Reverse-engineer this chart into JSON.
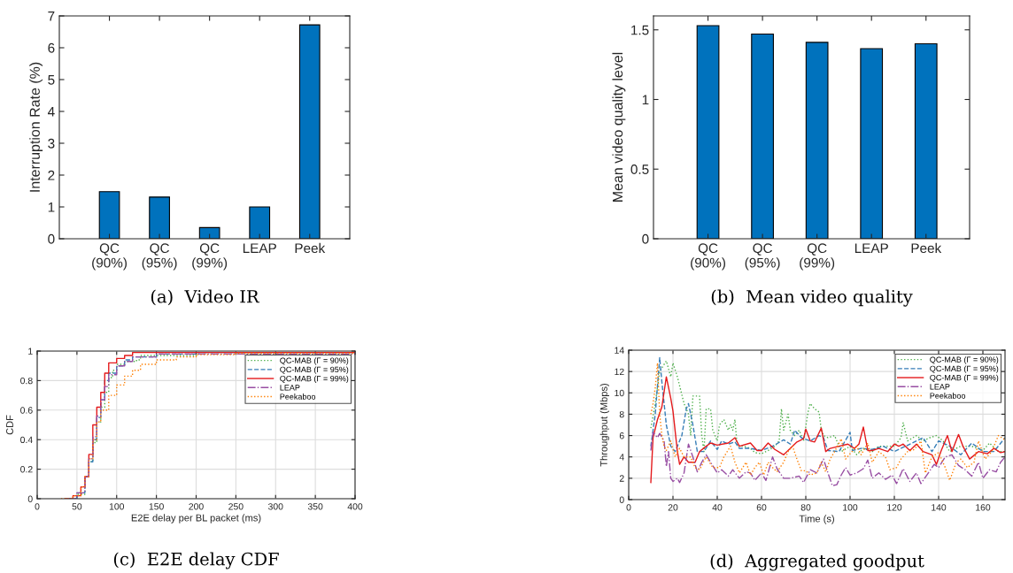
{
  "chart_data": [
    {
      "type": "bar",
      "title": "(a)  Video IR",
      "ylabel": "Interruption Rate (%)",
      "categories": [
        "QC\n(90%)",
        "QC\n(95%)",
        "QC\n(99%)",
        "LEAP",
        "Peek"
      ],
      "values": [
        1.48,
        1.31,
        0.35,
        1.0,
        6.72
      ],
      "color": "#0072bd",
      "ylim": [
        0,
        7
      ],
      "yticks": [
        0,
        1,
        2,
        3,
        4,
        5,
        6,
        7
      ]
    },
    {
      "type": "bar",
      "title": "(b)  Mean video quality",
      "ylabel": "Mean video quality level",
      "categories": [
        "QC\n(90%)",
        "QC\n(95%)",
        "QC\n(99%)",
        "LEAP",
        "Peek"
      ],
      "values": [
        1.53,
        1.47,
        1.41,
        1.365,
        1.4
      ],
      "color": "#0072bd",
      "ylim": [
        0,
        1.6
      ],
      "yticks": [
        0,
        0.5,
        1,
        1.5
      ]
    },
    {
      "type": "step",
      "title": "(c)  E2E delay CDF",
      "xlabel": "E2E delay per BL packet (ms)",
      "ylabel": "CDF",
      "xlim": [
        0,
        400
      ],
      "xticks": [
        0,
        50,
        100,
        150,
        200,
        250,
        300,
        350,
        400
      ],
      "ylim": [
        0,
        1
      ],
      "yticks": [
        0,
        0.2,
        0.4,
        0.6,
        0.8,
        1
      ],
      "grid": true,
      "legend": "top right",
      "series": [
        {
          "name": "QC-MAB (Γ = 90%)",
          "color": "#4daf4a",
          "line_style": "dotted",
          "x": [
            40,
            50,
            60,
            65,
            70,
            75,
            80,
            85,
            90,
            95,
            100,
            110,
            125,
            130,
            200,
            400
          ],
          "values": [
            0,
            0.03,
            0.15,
            0.25,
            0.38,
            0.52,
            0.62,
            0.72,
            0.82,
            0.87,
            0.91,
            0.93,
            0.94,
            0.97,
            0.98,
            0.99
          ]
        },
        {
          "name": "QC-MAB (Γ = 95%)",
          "color": "#377eb8",
          "line_style": "dashed",
          "x": [
            40,
            50,
            60,
            65,
            70,
            75,
            80,
            85,
            90,
            100,
            110,
            120,
            150,
            200,
            400
          ],
          "values": [
            0,
            0.04,
            0.15,
            0.25,
            0.4,
            0.55,
            0.67,
            0.8,
            0.85,
            0.9,
            0.94,
            0.96,
            0.98,
            0.99,
            1.0
          ]
        },
        {
          "name": "QC-MAB (Γ = 99%)",
          "color": "#e41a1c",
          "line_style": "solid",
          "x": [
            35,
            45,
            55,
            60,
            65,
            70,
            75,
            80,
            85,
            90,
            100,
            110,
            120,
            400
          ],
          "values": [
            0,
            0.02,
            0.08,
            0.15,
            0.3,
            0.5,
            0.62,
            0.72,
            0.85,
            0.92,
            0.95,
            0.97,
            0.99,
            1.0
          ]
        },
        {
          "name": "LEAP",
          "color": "#984ea3",
          "line_style": "dashdot",
          "x": [
            40,
            50,
            60,
            65,
            70,
            75,
            80,
            85,
            90,
            100,
            110,
            120,
            150,
            400
          ],
          "values": [
            0,
            0.04,
            0.15,
            0.27,
            0.42,
            0.56,
            0.67,
            0.76,
            0.84,
            0.9,
            0.93,
            0.96,
            0.98,
            0.99
          ]
        },
        {
          "name": "Peekaboo",
          "color": "#ff7f00",
          "line_style": "dotted",
          "x": [
            30,
            45,
            55,
            60,
            65,
            70,
            75,
            80,
            90,
            100,
            110,
            120,
            130,
            150,
            175,
            200,
            250,
            400
          ],
          "values": [
            0,
            0.02,
            0.08,
            0.15,
            0.27,
            0.4,
            0.52,
            0.6,
            0.7,
            0.77,
            0.83,
            0.87,
            0.91,
            0.94,
            0.96,
            0.975,
            0.985,
            0.99
          ]
        }
      ]
    },
    {
      "type": "line",
      "title": "(d)  Aggregated goodput",
      "xlabel": "Time (s)",
      "ylabel": "Throughput (Mbps)",
      "xlim": [
        0,
        170
      ],
      "xticks": [
        0,
        20,
        40,
        60,
        80,
        100,
        120,
        140,
        160
      ],
      "ylim": [
        0,
        14
      ],
      "yticks": [
        0,
        2,
        4,
        6,
        8,
        10,
        12,
        14
      ],
      "grid": true,
      "legend": "top right",
      "series": [
        {
          "name": "QC-MAB (Γ = 90%)",
          "color": "#4daf4a",
          "line_style": "dotted",
          "x": [
            10,
            12,
            14,
            17,
            19,
            20,
            22,
            25,
            27,
            28,
            29,
            32,
            33,
            34,
            35,
            37,
            38,
            40,
            41,
            43,
            45,
            46,
            47,
            48,
            49,
            52,
            55,
            57,
            60,
            63,
            66,
            68,
            69,
            70,
            72,
            73,
            75,
            77,
            79,
            81,
            82,
            84,
            86,
            87,
            88,
            90,
            93,
            94,
            96,
            100,
            103,
            106,
            110,
            113,
            116,
            120,
            123,
            124,
            126,
            130,
            133,
            136,
            139,
            142,
            145,
            150,
            155,
            160,
            163,
            167,
            170
          ],
          "values": [
            6.7,
            9,
            12,
            13,
            11.5,
            12.8,
            11.5,
            9,
            8,
            6,
            9.7,
            9.7,
            6,
            4.5,
            8.5,
            8.5,
            6.5,
            5.5,
            7,
            7.5,
            6.5,
            7,
            6.5,
            7.5,
            5,
            5,
            4.8,
            4.4,
            4.3,
            4.6,
            5,
            5.5,
            8.5,
            6.5,
            8,
            6.5,
            6,
            6.5,
            5.5,
            8.2,
            9,
            8.5,
            8.2,
            6.5,
            6,
            5.8,
            6,
            5.5,
            4.5,
            5,
            4.2,
            4.8,
            4.5,
            5,
            5,
            5,
            5.8,
            7.2,
            5.5,
            6,
            5.5,
            5.8,
            6,
            5.5,
            4.5,
            5,
            5,
            4.6,
            5.3,
            4.5,
            4.5
          ]
        },
        {
          "name": "QC-MAB (Γ = 95%)",
          "color": "#377eb8",
          "line_style": "dashed",
          "x": [
            10,
            12,
            14,
            15,
            17,
            19,
            21,
            24,
            26,
            27,
            29,
            31,
            34,
            37,
            40,
            42,
            45,
            48,
            50,
            55,
            60,
            65,
            70,
            73,
            75,
            78,
            82,
            86,
            88,
            90,
            95,
            100,
            101,
            105,
            110,
            115,
            120,
            125,
            130,
            133,
            137,
            140,
            145,
            150,
            155,
            160,
            165,
            170
          ],
          "values": [
            5,
            8,
            13.3,
            11,
            7,
            5,
            4.5,
            6,
            8.5,
            9,
            7,
            4.5,
            4.5,
            5.5,
            4.7,
            5.5,
            5.2,
            5.4,
            4.8,
            4.8,
            4.6,
            5,
            5.6,
            5.2,
            6.5,
            5.8,
            5.5,
            6,
            5.8,
            4.6,
            4.5,
            6.3,
            4.6,
            4.8,
            4.7,
            5,
            4.5,
            5,
            5.5,
            5.8,
            4.5,
            5.5,
            5,
            4.2,
            5.3,
            4.5,
            4.5,
            5.8
          ]
        },
        {
          "name": "QC-MAB (Γ = 99%)",
          "color": "#e41a1c",
          "line_style": "solid",
          "x": [
            10,
            11,
            13,
            15,
            17,
            19,
            20,
            22,
            23,
            25,
            27,
            30,
            32,
            35,
            37,
            40,
            45,
            48,
            50,
            55,
            58,
            60,
            63,
            66,
            70,
            73,
            76,
            79,
            80,
            82,
            84,
            87,
            89,
            91,
            95,
            99,
            102,
            104,
            106,
            108,
            110,
            113,
            117,
            120,
            122,
            124,
            127,
            130,
            133,
            137,
            139,
            141,
            144,
            146,
            149,
            151,
            154,
            158,
            162,
            165,
            168,
            170
          ],
          "values": [
            1.6,
            5.8,
            7.5,
            8.7,
            11.5,
            9.5,
            8.3,
            4.5,
            3.3,
            4,
            3.5,
            3.5,
            4.5,
            5,
            5.3,
            5.1,
            5.3,
            5.8,
            5,
            5.3,
            4.6,
            4.6,
            5.3,
            4.7,
            4.2,
            4.8,
            5.4,
            5.7,
            6.6,
            5.5,
            5.4,
            6.7,
            4.5,
            4.8,
            5,
            5.2,
            4.8,
            5.2,
            6.8,
            4.6,
            4.6,
            4.8,
            4.5,
            5.2,
            5,
            5.2,
            4.6,
            5.2,
            4.5,
            4.2,
            3.3,
            4.5,
            6,
            4.5,
            6.1,
            5,
            3.8,
            4.5,
            4.3,
            4.8,
            4.4,
            4.5
          ]
        },
        {
          "name": "LEAP",
          "color": "#984ea3",
          "line_style": "dashdot",
          "x": [
            10,
            11,
            13,
            14,
            16,
            17,
            18,
            19,
            20,
            22,
            23,
            25,
            27,
            29,
            31,
            33,
            35,
            37,
            40,
            42,
            45,
            47,
            50,
            53,
            55,
            57,
            60,
            62,
            65,
            67,
            70,
            73,
            77,
            79,
            82,
            85,
            88,
            90,
            92,
            94,
            96,
            98,
            100,
            103,
            106,
            108,
            110,
            113,
            116,
            119,
            121,
            124,
            127,
            130,
            132,
            135,
            138,
            140,
            143,
            146,
            149,
            152,
            155,
            158,
            160,
            163,
            166,
            168,
            170
          ],
          "values": [
            4.6,
            6.3,
            5.8,
            6.2,
            5.5,
            3.1,
            4.5,
            2,
            1.7,
            2,
            1.6,
            2.5,
            5.2,
            4,
            2.6,
            3.5,
            4.2,
            3.5,
            2.5,
            2.8,
            2.2,
            2.8,
            2,
            2.6,
            2.5,
            1.8,
            2.5,
            1.8,
            4,
            2.9,
            2,
            2,
            2.2,
            1.6,
            2.8,
            2.5,
            3.8,
            2.5,
            1.3,
            1.4,
            2.3,
            3,
            2.3,
            2.5,
            2.9,
            3.7,
            2,
            2.5,
            1.9,
            2.3,
            1.5,
            2.9,
            1.7,
            2.5,
            1.5,
            2.4,
            3.3,
            3,
            4,
            4.2,
            3.2,
            2.8,
            2.2,
            3.5,
            2,
            2.8,
            2.6,
            3.5,
            4
          ]
        },
        {
          "name": "Peekaboo",
          "color": "#ff7f00",
          "line_style": "dotted",
          "x": [
            10,
            11,
            12,
            13,
            14,
            15,
            16,
            17,
            19,
            21,
            23,
            25,
            28,
            30,
            32,
            35,
            38,
            41,
            43,
            46,
            48,
            50,
            53,
            55,
            57,
            59,
            61,
            63,
            65,
            67,
            70,
            72,
            74,
            76,
            78,
            80,
            82,
            85,
            87,
            89,
            91,
            93,
            96,
            98,
            100,
            103,
            105,
            108,
            110,
            113,
            116,
            118,
            121,
            123,
            126,
            129,
            132,
            134,
            137,
            140,
            143,
            145,
            148,
            150,
            153,
            156,
            158,
            161,
            164,
            167,
            170
          ],
          "values": [
            8,
            9,
            10.5,
            12.8,
            8,
            6,
            5,
            4.6,
            5.5,
            4,
            4.8,
            4,
            4,
            3,
            2.8,
            4,
            3,
            3,
            4,
            5,
            3.5,
            2.5,
            3.5,
            2.3,
            3,
            3.5,
            2.3,
            3.5,
            3,
            2.6,
            3.5,
            4.5,
            5,
            3.8,
            2.7,
            2.7,
            2.3,
            2.5,
            3.5,
            2.6,
            3.8,
            4.5,
            5.7,
            3.8,
            4.3,
            5,
            4.2,
            5.3,
            3.5,
            4.5,
            4,
            2.8,
            3,
            3.8,
            4.5,
            4.7,
            5.5,
            2.5,
            4,
            4.4,
            3,
            1.8,
            3.5,
            3.8,
            3,
            3.5,
            5.5,
            3.8,
            4.5,
            6,
            5.6
          ]
        }
      ]
    }
  ]
}
